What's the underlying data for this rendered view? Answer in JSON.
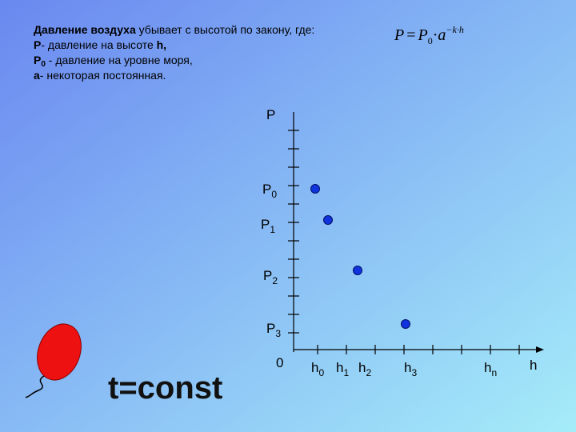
{
  "description": {
    "line1": {
      "bold": "Давление воздуха",
      "rest": " убывает с высотой по закону, где:"
    },
    "line2": {
      "bold": "P",
      "rest": "- давление на высоте ",
      "bold_end": "h,"
    },
    "line3": {
      "bold": "P",
      "sub": "0",
      "rest": " - давление на уровне моря,"
    },
    "line4": {
      "bold": "a",
      "rest": "- некоторая постоянная."
    }
  },
  "formula": {
    "lhs": "P",
    "eq": "=",
    "base": "P",
    "sub": "0",
    "dot": "·",
    "a": "a",
    "exp": "−k·h"
  },
  "graph": {
    "y_label": "P",
    "x_label": "h",
    "origin": "0",
    "y_marks": [
      {
        "base": "P",
        "sub": "0"
      },
      {
        "base": "P",
        "sub": "1"
      },
      {
        "base": "P",
        "sub": "2"
      },
      {
        "base": "P",
        "sub": "3"
      }
    ],
    "x_marks": [
      {
        "base": "h",
        "sub": "0"
      },
      {
        "base": "h",
        "sub": "1"
      },
      {
        "base": "h",
        "sub": "2"
      },
      {
        "base": "h",
        "sub": "3"
      },
      {
        "base": "h",
        "sub": "n"
      }
    ]
  },
  "caption": "t=const"
}
